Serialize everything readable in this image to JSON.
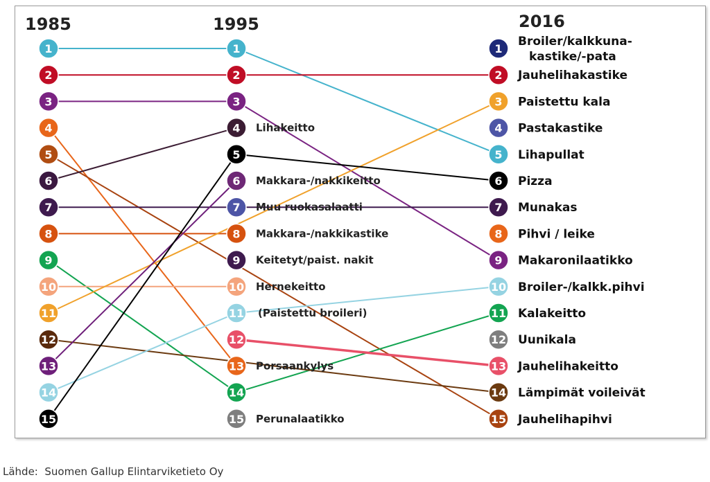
{
  "source": "Lähde:  Suomen Gallup Elintarviketieto Oy",
  "chart_data": {
    "type": "slope",
    "title": "",
    "years": [
      "1985",
      "1995",
      "2016"
    ],
    "colors": {
      "1": "#45b3cc",
      "2": "#c00d25",
      "3": "#7a2382",
      "4": "#e8661a",
      "5": "#b04d12",
      "6": "#3b1840",
      "7": "#3e1a4e",
      "8": "#d6520f",
      "9": "#13a451",
      "10": "#f4a47c",
      "11": "#f0a12b",
      "12": "#5a2a0c",
      "13": "#6e1f7a",
      "14": "#95d3e2",
      "15": "#000000",
      "c1995_4": "#3b1c33",
      "c1995_5": "#000000",
      "c1995_6": "#6e2876",
      "c1995_7": "#4d55a6",
      "c1995_8": "#d6520f",
      "c1995_9": "#3e1a4e",
      "c1995_10": "#f4a47c",
      "c1995_11": "#95d3e2",
      "c1995_12": "#e85068",
      "c1995_13": "#e8661a",
      "c1995_14": "#13a451",
      "c1995_15": "#7e7e7e",
      "c2016_1": "#1e2a78",
      "c2016_2": "#c00d25",
      "c2016_3": "#f0a12b",
      "c2016_4": "#4d55a6",
      "c2016_5": "#45b3cc",
      "c2016_6": "#000000",
      "c2016_7": "#3e1a4e",
      "c2016_8": "#e8661a",
      "c2016_9": "#7a2382",
      "c2016_10": "#95d3e2",
      "c2016_11": "#13a451",
      "c2016_12": "#7e7e7e",
      "c2016_13": "#e85068",
      "c2016_14": "#6b3a10",
      "c2016_15": "#a84310"
    },
    "labels_1995": {
      "4": "Lihakeitto",
      "6": "Makkara-/nakkikeitto",
      "7": "Muu ruokasalaatti",
      "8": "Makkara-/nakkikastike",
      "9": "Keitetyt/paist. nakit",
      "10": "Hernekeitto",
      "11": "(Paistettu broileri)",
      "13": "Porsaankylys",
      "15": "Perunalaatikko"
    },
    "labels_2016": [
      "Broiler/kalkkuna-",
      "kastike/-pata",
      "Jauhelihakastike",
      "Paistettu  kala",
      "Pastakastike",
      "Lihapullat",
      "Pizza",
      "Munakas",
      "Pihvi  /  leike",
      "Makaronilaatikko",
      "Broiler-/kalkk.pihvi",
      "Kalakeitto",
      "Uunikala",
      "Jauhelihakeitto",
      "Lämpimät voileivät",
      "Jauhelihapihvi"
    ],
    "lines": [
      {
        "r1985": 1,
        "r1995": 1,
        "r2016": 5,
        "color": "#45b3cc"
      },
      {
        "r1985": 2,
        "r1995": 2,
        "r2016": 2,
        "color": "#c00d25"
      },
      {
        "r1985": 3,
        "r1995": 3,
        "r2016": 9,
        "color": "#7a2382"
      },
      {
        "r1985": 4,
        "r1995": 13,
        "r2016": null,
        "color": "#e8661a"
      },
      {
        "r1985": 5,
        "r1995": null,
        "r2016": 15,
        "color": "#a84310"
      },
      {
        "r1985": 6,
        "r1995": 4,
        "r2016": null,
        "color": "#3b1c33"
      },
      {
        "r1985": 7,
        "r1995": 7,
        "r2016": 7,
        "color": "#3e1a4e"
      },
      {
        "r1985": 8,
        "r1995": 8,
        "r2016": null,
        "color": "#d6520f"
      },
      {
        "r1985": 9,
        "r1995": 14,
        "r2016": 11,
        "color": "#13a451"
      },
      {
        "r1985": 10,
        "r1995": 10,
        "r2016": null,
        "color": "#f4a47c"
      },
      {
        "r1985": 11,
        "r1995": null,
        "r2016": 3,
        "color": "#f0a12b"
      },
      {
        "r1985": 12,
        "r1995": null,
        "r2016": 14,
        "color": "#6b3a10"
      },
      {
        "r1985": 13,
        "r1995": 6,
        "r2016": null,
        "color": "#6e1f7a"
      },
      {
        "r1985": 14,
        "r1995": 11,
        "r2016": 10,
        "color": "#95d3e2"
      },
      {
        "r1985": 15,
        "r1995": 5,
        "r2016": 6,
        "color": "#000000"
      },
      {
        "r1985": null,
        "r1995": 12,
        "r2016": 13,
        "color": "#e85068"
      }
    ]
  }
}
